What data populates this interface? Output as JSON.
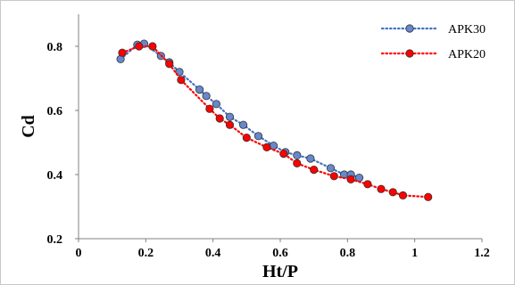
{
  "chart_data": {
    "type": "scatter",
    "title": "",
    "xlabel": "Ht/P",
    "ylabel": "Cd",
    "xlim": [
      0,
      1.2
    ],
    "ylim": [
      0.2,
      0.9
    ],
    "xticks": [
      "0",
      "0.2",
      "0.4",
      "0.6",
      "0.8",
      "1",
      "1.2"
    ],
    "yticks": [
      "0.2",
      "0.4",
      "0.6",
      "0.8"
    ],
    "grid": false,
    "legend_position": "top-right",
    "series": [
      {
        "name": "APK30",
        "line_color": "#4472c4",
        "marker_color": "#6688cc",
        "line_style": "dotted",
        "points": [
          [
            0.125,
            0.76
          ],
          [
            0.175,
            0.805
          ],
          [
            0.195,
            0.808
          ],
          [
            0.245,
            0.77
          ],
          [
            0.27,
            0.75
          ],
          [
            0.3,
            0.72
          ],
          [
            0.36,
            0.665
          ],
          [
            0.38,
            0.645
          ],
          [
            0.41,
            0.62
          ],
          [
            0.45,
            0.58
          ],
          [
            0.49,
            0.555
          ],
          [
            0.535,
            0.52
          ],
          [
            0.58,
            0.49
          ],
          [
            0.615,
            0.47
          ],
          [
            0.65,
            0.46
          ],
          [
            0.69,
            0.45
          ],
          [
            0.75,
            0.42
          ],
          [
            0.79,
            0.4
          ],
          [
            0.81,
            0.4
          ],
          [
            0.835,
            0.39
          ]
        ]
      },
      {
        "name": "APK20",
        "line_color": "#ff0000",
        "marker_color": "#ff0000",
        "line_style": "dotted",
        "points": [
          [
            0.13,
            0.78
          ],
          [
            0.18,
            0.8
          ],
          [
            0.22,
            0.8
          ],
          [
            0.27,
            0.745
          ],
          [
            0.305,
            0.695
          ],
          [
            0.39,
            0.605
          ],
          [
            0.42,
            0.575
          ],
          [
            0.45,
            0.555
          ],
          [
            0.5,
            0.515
          ],
          [
            0.56,
            0.485
          ],
          [
            0.61,
            0.465
          ],
          [
            0.65,
            0.435
          ],
          [
            0.7,
            0.415
          ],
          [
            0.76,
            0.395
          ],
          [
            0.81,
            0.385
          ],
          [
            0.86,
            0.37
          ],
          [
            0.9,
            0.355
          ],
          [
            0.935,
            0.345
          ],
          [
            0.965,
            0.335
          ],
          [
            1.04,
            0.33
          ]
        ]
      }
    ]
  }
}
